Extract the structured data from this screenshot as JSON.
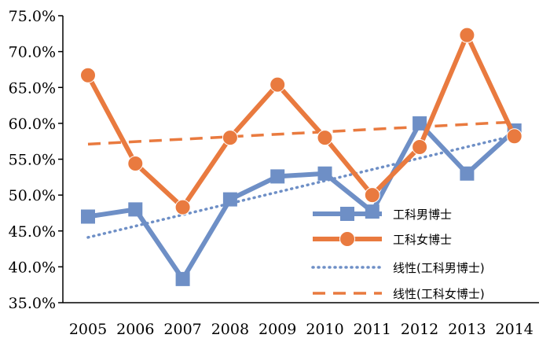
{
  "chart_data": {
    "type": "line",
    "title": "",
    "xlabel": "",
    "ylabel": "",
    "categories": [
      "2005",
      "2006",
      "2007",
      "2008",
      "2009",
      "2010",
      "2011",
      "2012",
      "2013",
      "2014"
    ],
    "ylim": [
      35.0,
      75.0
    ],
    "y_ticks": [
      "35.0%",
      "40.0%",
      "45.0%",
      "50.0%",
      "55.0%",
      "60.0%",
      "65.0%",
      "70.0%",
      "75.0%"
    ],
    "grid": false,
    "legend_position": "bottom-right",
    "series": [
      {
        "name": "工科男博士",
        "values": [
          47.0,
          48.0,
          38.3,
          49.4,
          52.6,
          53.0,
          47.7,
          60.0,
          53.0,
          59.0
        ],
        "color": "#6E8FC6",
        "marker": "square",
        "line_style": "solid"
      },
      {
        "name": "工科女博士",
        "values": [
          66.7,
          54.4,
          48.3,
          58.0,
          65.4,
          58.0,
          50.0,
          56.7,
          72.3,
          58.2
        ],
        "color": "#E97A3F",
        "marker": "circle",
        "line_style": "solid"
      }
    ],
    "trendlines": [
      {
        "name": "线性(工科男博士)",
        "start": 44.1,
        "end": 58.3,
        "color": "#6E8FC6",
        "line_style": "dotted"
      },
      {
        "name": "线性(工科女博士)",
        "start": 57.1,
        "end": 60.2,
        "color": "#E97A3F",
        "line_style": "dashed"
      }
    ]
  }
}
